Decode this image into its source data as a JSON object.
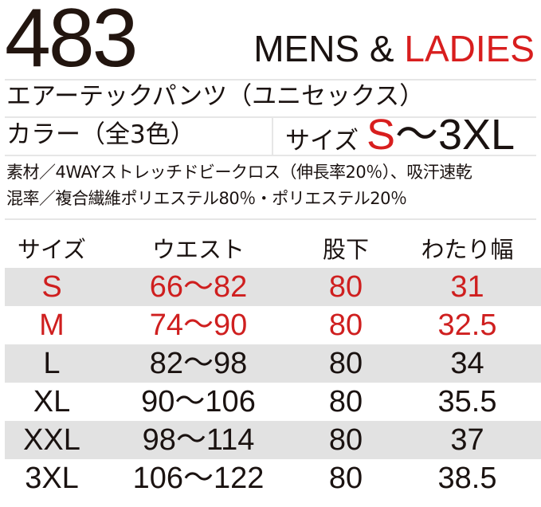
{
  "header": {
    "model_number": "483",
    "gender_mens": "MENS &",
    "gender_ladies": "LADIES"
  },
  "product_name": "エアーテックパンツ（ユニセックス）",
  "color_label": "カラー（全3色）",
  "size_range": {
    "label": "サイズ",
    "from": "S",
    "to": "～3XL"
  },
  "material": {
    "line1": "素材／4WAYストレッチドビークロス（伸長率20％）、吸汗速乾",
    "line2": "混率／複合繊維ポリエステル80％・ポリエステル20％"
  },
  "size_table": {
    "headers": [
      "サイズ",
      "ウエスト",
      "股下",
      "わたり幅"
    ],
    "rows": [
      {
        "size": "S",
        "waist": "66～82",
        "inseam": "80",
        "thigh": "31"
      },
      {
        "size": "M",
        "waist": "74～90",
        "inseam": "80",
        "thigh": "32.5"
      },
      {
        "size": "L",
        "waist": "82～98",
        "inseam": "80",
        "thigh": "34"
      },
      {
        "size": "XL",
        "waist": "90～106",
        "inseam": "80",
        "thigh": "35.5"
      },
      {
        "size": "XXL",
        "waist": "98～114",
        "inseam": "80",
        "thigh": "37"
      },
      {
        "size": "3XL",
        "waist": "106～122",
        "inseam": "80",
        "thigh": "38.5"
      }
    ]
  },
  "colors": {
    "accent": "#d81e1e",
    "row_shade": "#e2e2e2",
    "text": "#1a1210"
  }
}
